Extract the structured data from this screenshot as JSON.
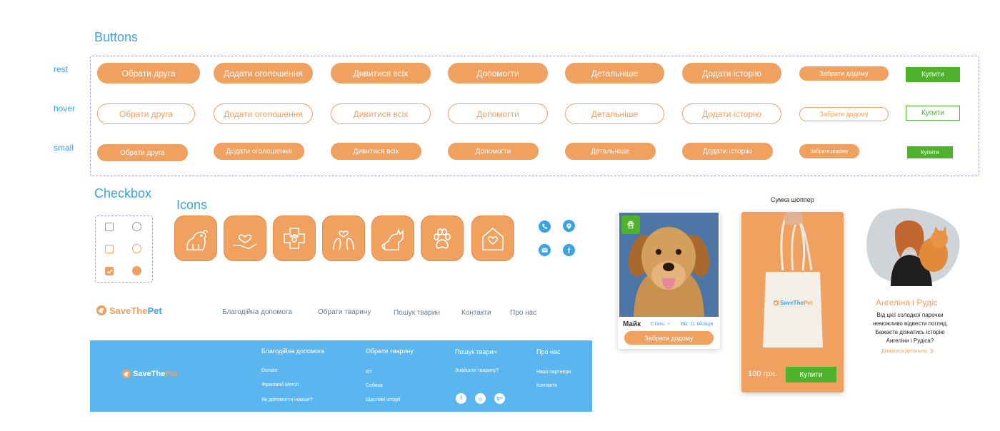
{
  "sections": {
    "buttons_title": "Buttons",
    "checkbox_title": "Checkbox",
    "icons_title": "Icons"
  },
  "row_labels": {
    "rest": "rest",
    "hover": "hover",
    "small": "small"
  },
  "buttons": {
    "labels": [
      "Обрати друга",
      "Додати оголошення",
      "Дивитися всіх",
      "Допомогти",
      "Детальніше",
      "Додати історію",
      "Забрати додому"
    ],
    "buy": "Купити"
  },
  "icons": [
    "dog-icon",
    "heart-hand-icon",
    "vet-cross-icon",
    "pet-love-icon",
    "cat-icon",
    "paw-icon",
    "heart-house-icon"
  ],
  "contact_icons": [
    "phone-icon",
    "location-icon",
    "email-icon",
    "facebook-icon"
  ],
  "header": {
    "logo_text_a": "SaveThe",
    "logo_text_b": "Pet",
    "nav": [
      "Благодійна допомога",
      "Обрати тварину",
      "Пошук тварин",
      "Контакти",
      "Про нас"
    ]
  },
  "footer": {
    "logo_text_a": "SaveThe",
    "logo_text_b": "Pet",
    "col1": {
      "title": "Благодійна допомога",
      "links": [
        "Donate",
        "Фірмовий Merch",
        "Як допомогти інакше?"
      ]
    },
    "col2": {
      "title": "Обрати тварину",
      "links": [
        "Кіт",
        "Собака",
        "Щасливі історії"
      ]
    },
    "col3": {
      "title": "Пошук тварин",
      "links": [
        "Знайшли тварину?"
      ]
    },
    "col4": {
      "title": "Про нас",
      "links": [
        "Наші партнери",
        "Контакти"
      ]
    },
    "social": [
      "f",
      "◎",
      "g+"
    ]
  },
  "pet_card": {
    "name": "Майк",
    "sex_label": "Стать: ♂",
    "age_label": "Вік: 11 місяців",
    "button": "Забрати додому"
  },
  "merch": {
    "title": "Сумка шоппер",
    "bag_logo_a": "SaveThe",
    "bag_logo_b": "Pet",
    "price": "100 грн.",
    "button": "Купити"
  },
  "story": {
    "name": "Ангеліна і Рудіс",
    "text": [
      "Від цієї солодкої парочки",
      "неможливо відвести погляд.",
      "Бажаєте дізнатись історію",
      "Ангеліни і Рудіса?"
    ],
    "link": "Дізнатися детально"
  },
  "colors": {
    "orange": "#f0a05f",
    "blue": "#3aa3e3",
    "footer_blue": "#5bb6f0",
    "green": "#4fb22c",
    "dash": "#a99be8"
  }
}
